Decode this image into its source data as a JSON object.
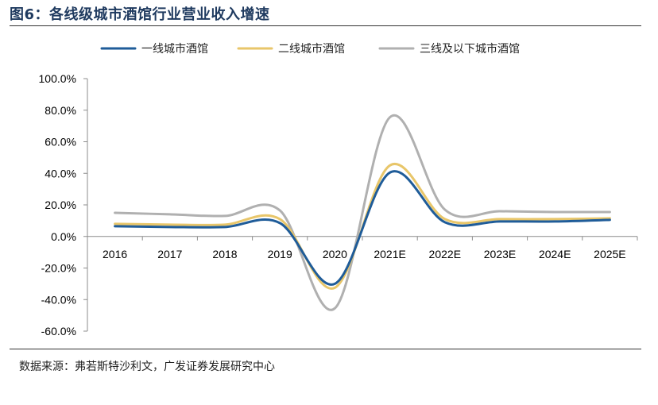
{
  "figure": {
    "title": "图6：各线级城市酒馆行业营业收入增速",
    "source": "数据来源：弗若斯特沙利文，广发证券发展研究中心"
  },
  "chart_data": {
    "type": "line",
    "title": "图6：各线级城市酒馆行业营业收入增速",
    "xlabel": "",
    "ylabel": "",
    "categories": [
      "2016",
      "2017",
      "2018",
      "2019",
      "2020",
      "2021E",
      "2022E",
      "2023E",
      "2024E",
      "2025E"
    ],
    "ylim": [
      -60,
      100
    ],
    "yticks": [
      100,
      80,
      60,
      40,
      20,
      0,
      -20,
      -40,
      -60
    ],
    "ytick_labels": [
      "100.0%",
      "80.0%",
      "60.0%",
      "40.0%",
      "20.0%",
      "0.0%",
      "-20.0%",
      "-40.0%",
      "-60.0%"
    ],
    "grid": false,
    "smooth": true,
    "legend_position": "top",
    "series": [
      {
        "name": "一线城市酒馆",
        "color": "#1f5c99",
        "values": [
          6.5,
          6.0,
          6.0,
          8.5,
          -30.0,
          40.5,
          9.0,
          9.5,
          9.5,
          10.5
        ]
      },
      {
        "name": "二线城市酒馆",
        "color": "#e8c66a",
        "values": [
          8.0,
          7.5,
          7.5,
          11.0,
          -32.5,
          45.0,
          11.0,
          11.0,
          11.0,
          11.5
        ]
      },
      {
        "name": "三线及以下城市酒馆",
        "color": "#b0b0b0",
        "values": [
          15.0,
          14.0,
          13.0,
          16.5,
          -45.5,
          75.5,
          17.0,
          16.0,
          15.5,
          15.5
        ]
      }
    ]
  }
}
